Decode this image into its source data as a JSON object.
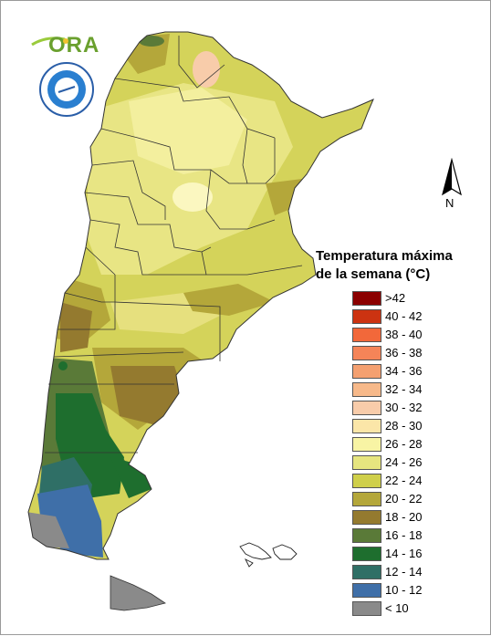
{
  "legend": {
    "title_line1": "Temperatura máxima",
    "title_line2": "de la semana (°C)",
    "items": [
      {
        "label": ">42",
        "color": "#8b0000"
      },
      {
        "label": "40 - 42",
        "color": "#cc3311"
      },
      {
        "label": "38 - 40",
        "color": "#f2683a"
      },
      {
        "label": "36 - 38",
        "color": "#f58458"
      },
      {
        "label": "34 - 36",
        "color": "#f4a070"
      },
      {
        "label": "32 - 34",
        "color": "#f7b98a"
      },
      {
        "label": "30 - 32",
        "color": "#f8ccaa"
      },
      {
        "label": "28 - 30",
        "color": "#fbe6a8"
      },
      {
        "label": "26 - 28",
        "color": "#f8f4a4"
      },
      {
        "label": "24 - 26",
        "color": "#e6e57f"
      },
      {
        "label": "22 - 24",
        "color": "#cfcf4a"
      },
      {
        "label": "20 - 22",
        "color": "#b4a73a"
      },
      {
        "label": "18 - 20",
        "color": "#947a2f"
      },
      {
        "label": "16 - 18",
        "color": "#5a7a38"
      },
      {
        "label": "14 - 16",
        "color": "#1e6e2e"
      },
      {
        "label": "12 - 14",
        "color": "#2f6f66"
      },
      {
        "label": "10 - 12",
        "color": "#3f6fa8"
      },
      {
        "label": "< 10",
        "color": "#8a8a8a"
      }
    ]
  },
  "north_arrow": {
    "label": "N"
  },
  "logos": {
    "ora_text": "ORA"
  }
}
